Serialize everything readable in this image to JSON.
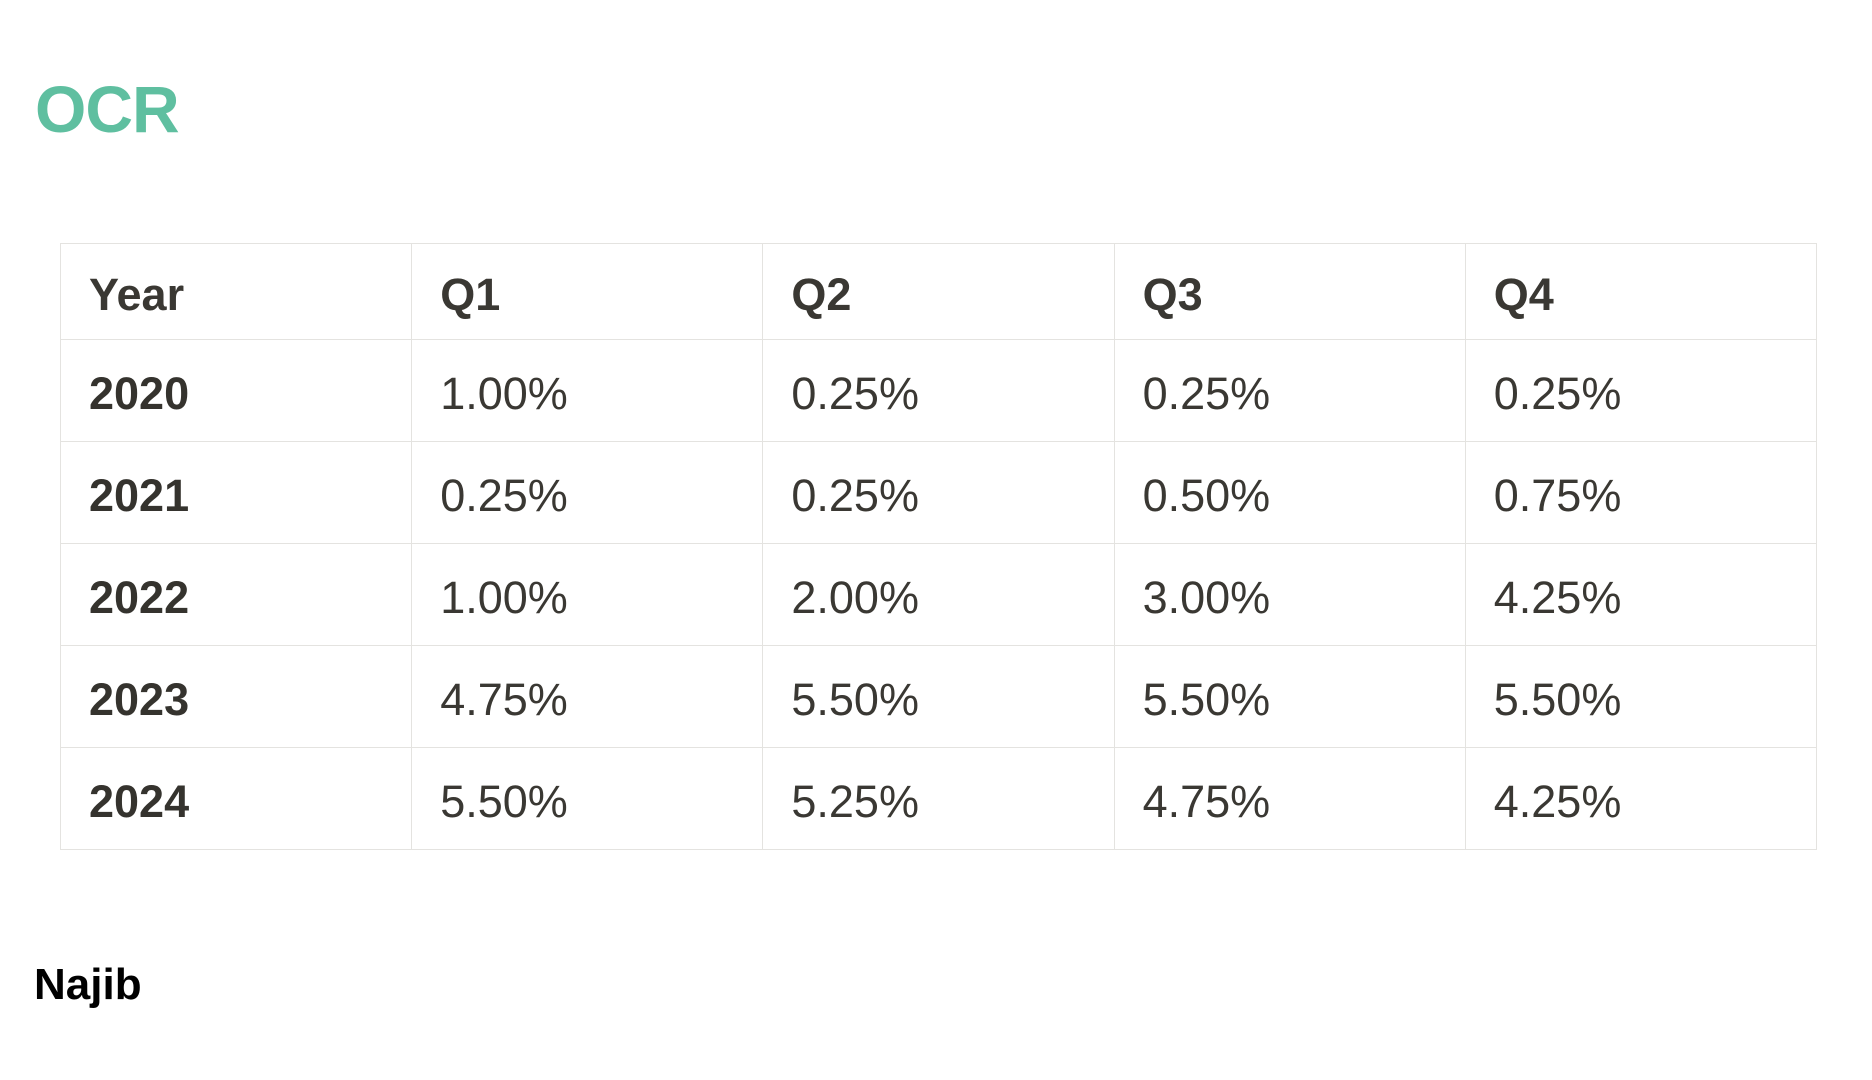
{
  "page": {
    "heading": "OCR",
    "heading_color": "#5fbfa0",
    "footer_author": "Najib",
    "background_color": "#ffffff",
    "table_text_color": "#3a3833",
    "table_border_color": "#e4e3e0"
  },
  "table": {
    "columns": [
      "Year",
      "Q1",
      "Q2",
      "Q3",
      "Q4"
    ],
    "rows": [
      {
        "year": "2020",
        "values": [
          "1.00%",
          "0.25%",
          "0.25%",
          "0.25%"
        ]
      },
      {
        "year": "2021",
        "values": [
          "0.25%",
          "0.25%",
          "0.50%",
          "0.75%"
        ]
      },
      {
        "year": "2022",
        "values": [
          "1.00%",
          "2.00%",
          "3.00%",
          "4.25%"
        ]
      },
      {
        "year": "2023",
        "values": [
          "4.75%",
          "5.50%",
          "5.50%",
          "5.50%"
        ]
      },
      {
        "year": "2024",
        "values": [
          "5.50%",
          "5.25%",
          "4.75%",
          "4.25%"
        ]
      }
    ]
  },
  "chart_data": {
    "type": "table",
    "title": "OCR",
    "categories": [
      "Q1",
      "Q2",
      "Q3",
      "Q4"
    ],
    "series": [
      {
        "name": "2020",
        "values": [
          1.0,
          0.25,
          0.25,
          0.25
        ]
      },
      {
        "name": "2021",
        "values": [
          0.25,
          0.25,
          0.5,
          0.75
        ]
      },
      {
        "name": "2022",
        "values": [
          1.0,
          2.0,
          3.0,
          4.25
        ]
      },
      {
        "name": "2023",
        "values": [
          4.75,
          5.5,
          5.5,
          5.5
        ]
      },
      {
        "name": "2024",
        "values": [
          5.5,
          5.25,
          4.75,
          4.25
        ]
      }
    ],
    "unit": "%"
  }
}
